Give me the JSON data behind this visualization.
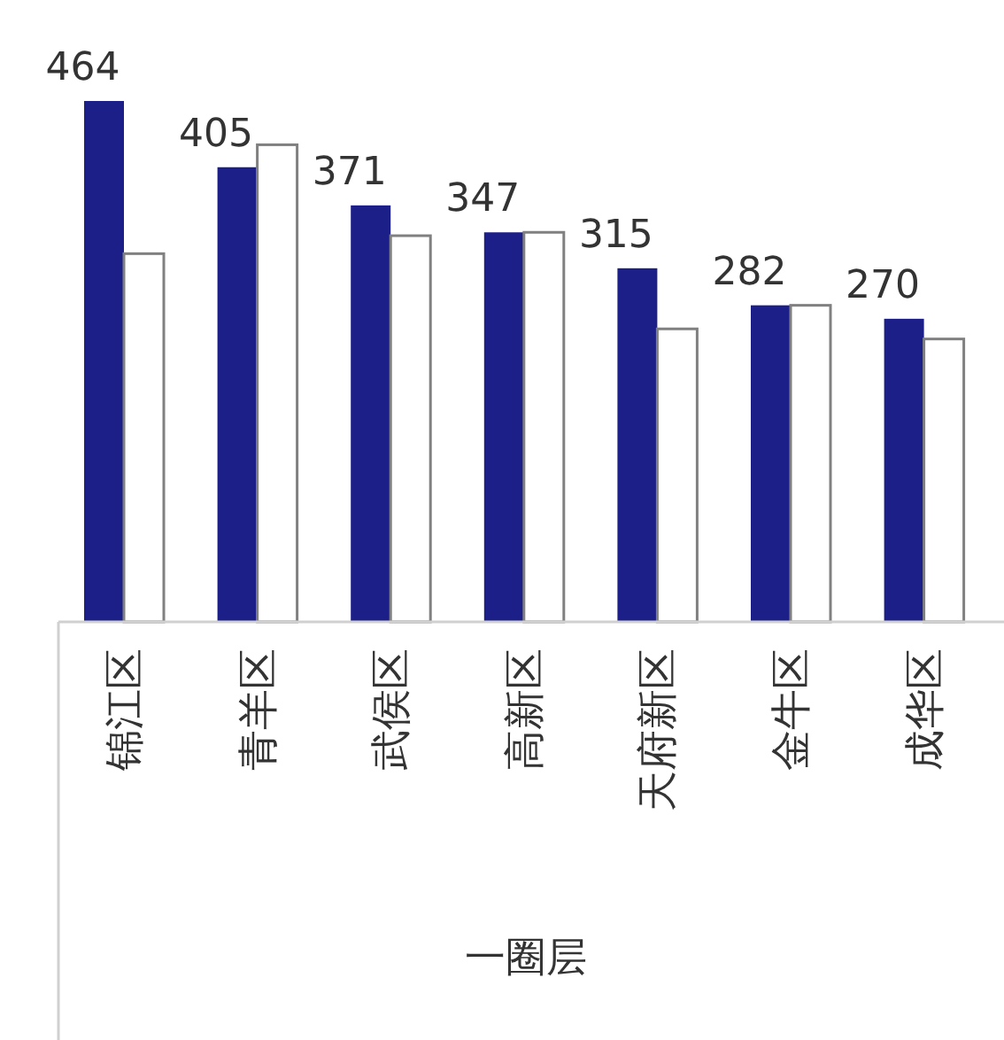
{
  "chart_data": {
    "type": "bar",
    "categories": [
      "锦江区",
      "青羊区",
      "武侯区",
      "高新区",
      "天府新区",
      "金牛区",
      "成华区"
    ],
    "xlabel": "一圈层",
    "series": [
      {
        "color": "#1c1f87",
        "values": [
          464,
          405,
          371,
          347,
          315,
          282,
          270
        ],
        "value_labels": [
          "464",
          "405",
          "371",
          "347",
          "315",
          "282",
          "270"
        ]
      },
      {
        "color": "#ffffff",
        "values": [
          328,
          425,
          344,
          347,
          261,
          282,
          252
        ]
      }
    ]
  }
}
